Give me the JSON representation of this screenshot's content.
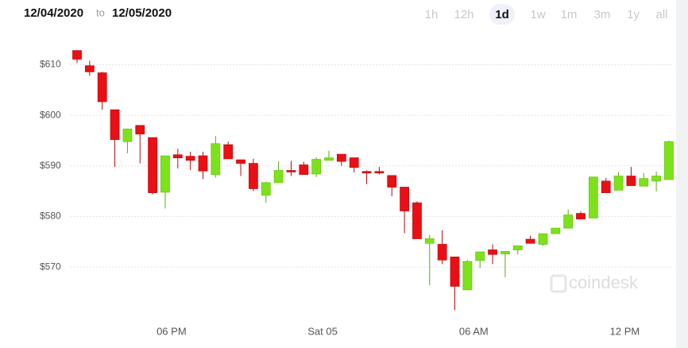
{
  "date_range": {
    "from": "12/04/2020",
    "separator": "to",
    "to": "12/05/2020"
  },
  "ranges": [
    "1h",
    "12h",
    "1d",
    "1w",
    "1m",
    "3m",
    "1y",
    "all"
  ],
  "selected_range": "1d",
  "watermark": "coindesk",
  "chart_data": {
    "type": "candlestick",
    "categories": [
      null,
      null,
      null,
      null,
      null,
      null,
      null,
      null,
      "06 PM",
      null,
      null,
      null,
      null,
      null,
      null,
      null,
      null,
      null,
      null,
      null,
      "Sat 05",
      null,
      null,
      null,
      null,
      null,
      null,
      null,
      null,
      null,
      null,
      null,
      "06 AM",
      null,
      null,
      null,
      null,
      null,
      null,
      null,
      null,
      null,
      null,
      null,
      "12 PM",
      null,
      null,
      null
    ],
    "open": [
      612.8,
      609.8,
      608.4,
      601.1,
      594.8,
      598.0,
      595.6,
      584.8,
      592.2,
      591.9,
      592.0,
      588.3,
      594.2,
      591.2,
      590.5,
      584.2,
      586.7,
      589.1,
      590.2,
      588.4,
      591.1,
      592.3,
      591.6,
      588.9,
      588.9,
      588.1,
      585.8,
      582.7,
      574.7,
      574.5,
      572.0,
      565.5,
      571.3,
      573.4,
      572.6,
      573.4,
      575.5,
      574.5,
      576.6,
      577.7,
      580.6,
      579.7,
      587.0,
      585.2,
      588.0,
      586.0,
      587.0,
      587.3
    ],
    "high": [
      612.8,
      610.8,
      608.6,
      601.1,
      597.3,
      598.0,
      595.6,
      592.0,
      593.4,
      592.8,
      592.8,
      595.9,
      594.8,
      591.2,
      591.4,
      586.9,
      590.9,
      591.0,
      590.8,
      591.7,
      593.0,
      592.3,
      591.6,
      589.1,
      589.8,
      588.1,
      585.8,
      583.0,
      576.4,
      577.3,
      572.0,
      571.4,
      573.0,
      574.5,
      573.1,
      574.2,
      576.2,
      576.6,
      577.7,
      581.4,
      581.0,
      587.8,
      587.6,
      588.8,
      589.8,
      588.6,
      588.9,
      595.0
    ],
    "low": [
      610.3,
      607.8,
      601.1,
      589.8,
      592.5,
      590.5,
      584.4,
      581.6,
      589.5,
      589.2,
      587.4,
      587.7,
      591.4,
      588.0,
      585.0,
      582.7,
      586.7,
      588.0,
      588.3,
      587.8,
      591.1,
      590.0,
      588.7,
      586.4,
      588.3,
      584.0,
      576.7,
      575.6,
      566.4,
      570.6,
      561.5,
      565.5,
      569.8,
      570.6,
      568.0,
      572.5,
      574.7,
      574.2,
      576.6,
      577.7,
      579.5,
      579.7,
      584.7,
      585.2,
      586.1,
      586.0,
      585.0,
      587.3
    ],
    "close": [
      611.1,
      608.6,
      602.7,
      595.2,
      597.3,
      596.3,
      584.7,
      592.0,
      591.6,
      591.1,
      589.0,
      594.4,
      591.4,
      590.5,
      585.5,
      586.7,
      589.1,
      588.8,
      588.3,
      591.3,
      591.6,
      590.9,
      589.7,
      588.6,
      588.6,
      585.8,
      581.1,
      575.6,
      575.6,
      571.4,
      566.2,
      571.1,
      573.0,
      572.5,
      573.1,
      574.2,
      574.7,
      576.6,
      577.7,
      580.3,
      579.5,
      587.8,
      584.7,
      588.0,
      586.1,
      587.5,
      588.0,
      594.8
    ],
    "up_color": "#7ee21a",
    "down_color": "#ea0f14",
    "ylim": [
      559.5,
      614
    ],
    "yticks": [
      {
        "value": 570,
        "label": "$570"
      },
      {
        "value": 580,
        "label": "$580"
      },
      {
        "value": 590,
        "label": "$590"
      },
      {
        "value": 600,
        "label": "$600"
      },
      {
        "value": 610,
        "label": "$610"
      }
    ],
    "grid": true
  }
}
